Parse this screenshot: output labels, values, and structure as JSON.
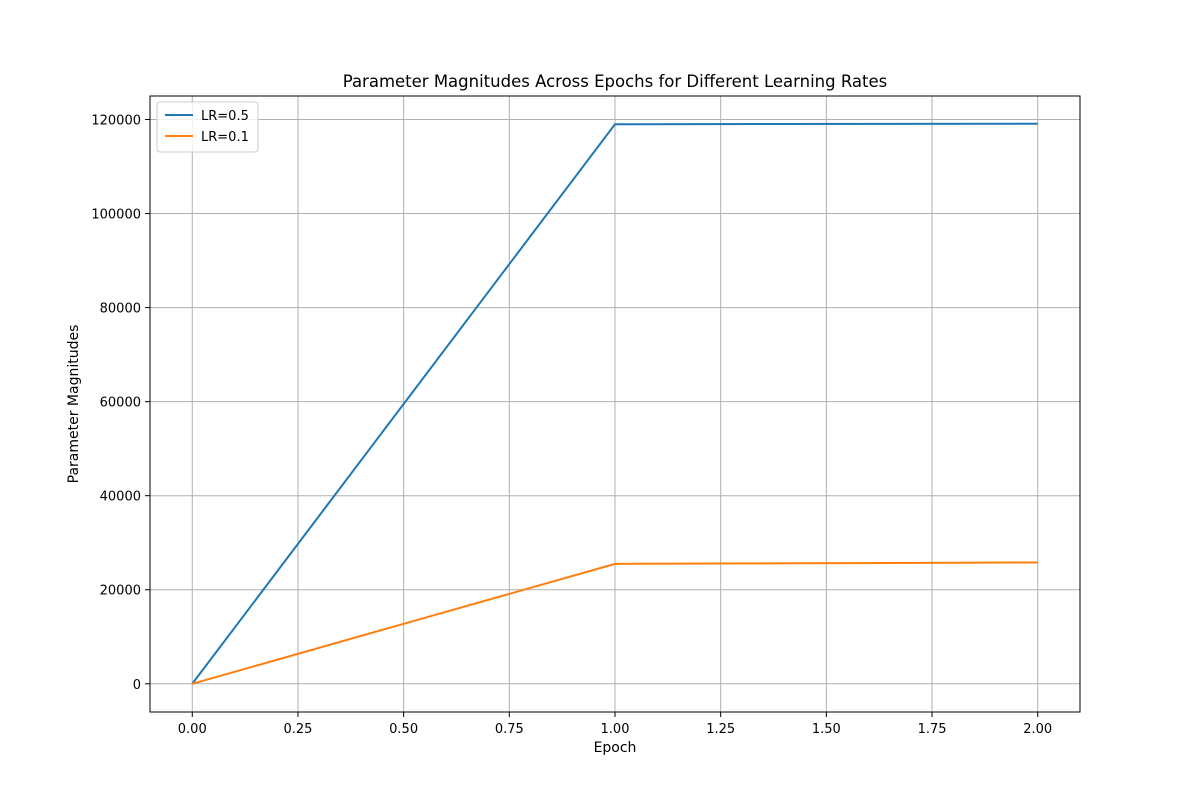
{
  "chart_data": {
    "type": "line",
    "title": "Parameter Magnitudes Across Epochs for Different Learning Rates",
    "xlabel": "Epoch",
    "ylabel": "Parameter Magnitudes",
    "xlim": [
      -0.1,
      2.1
    ],
    "ylim": [
      -6000,
      125000
    ],
    "xticks": [
      0.0,
      0.25,
      0.5,
      0.75,
      1.0,
      1.25,
      1.5,
      1.75,
      2.0
    ],
    "xtick_labels": [
      "0.00",
      "0.25",
      "0.50",
      "0.75",
      "1.00",
      "1.25",
      "1.50",
      "1.75",
      "2.00"
    ],
    "yticks": [
      0,
      20000,
      40000,
      60000,
      80000,
      100000,
      120000
    ],
    "ytick_labels": [
      "0",
      "20000",
      "40000",
      "60000",
      "80000",
      "100000",
      "120000"
    ],
    "grid": true,
    "legend_position": "upper-left",
    "series": [
      {
        "name": "LR=0.5",
        "color": "#1f77b4",
        "x": [
          0,
          1,
          2
        ],
        "y": [
          0,
          119000,
          119100
        ]
      },
      {
        "name": "LR=0.1",
        "color": "#ff7f0e",
        "x": [
          0,
          1,
          2
        ],
        "y": [
          0,
          25500,
          25800
        ]
      }
    ]
  }
}
